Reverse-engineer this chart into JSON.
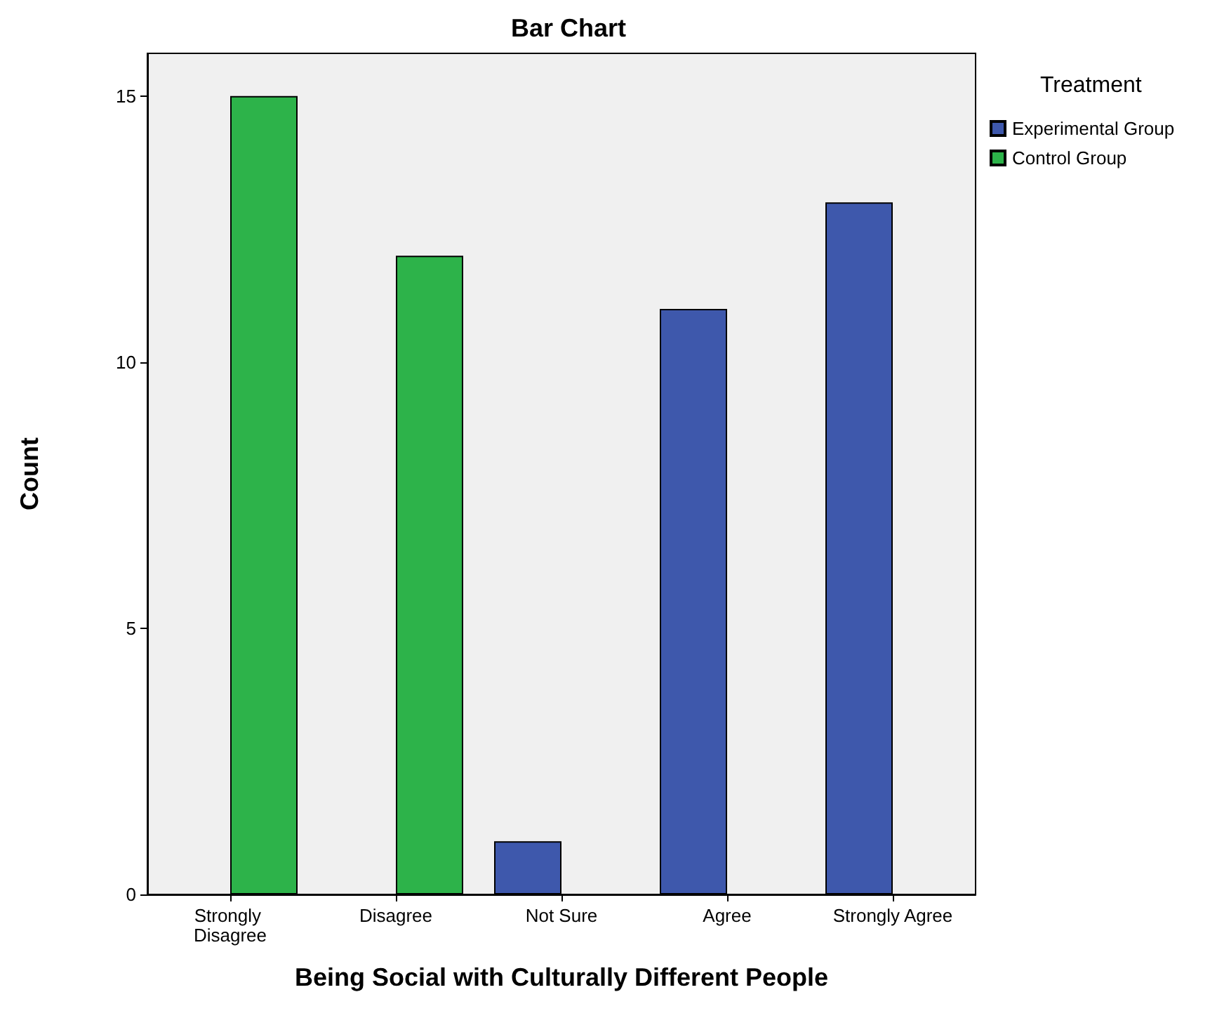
{
  "chart_data": {
    "type": "bar",
    "title": "Bar Chart",
    "xlabel": "Being Social with Culturally Different People",
    "ylabel": "Count",
    "legend_title": "Treatment",
    "categories": [
      "Strongly Disagree",
      "Disagree",
      "Not Sure",
      "Agree",
      "Strongly Agree"
    ],
    "series": [
      {
        "name": "Experimental Group",
        "color": "#3e58ac",
        "values": [
          null,
          null,
          1,
          11,
          13
        ]
      },
      {
        "name": "Control Group",
        "color": "#2db34a",
        "values": [
          15,
          12,
          null,
          null,
          null
        ]
      }
    ],
    "ylim": [
      0,
      15.8
    ],
    "yticks": [
      0,
      5,
      10,
      15
    ],
    "grid": false,
    "legend": "top right"
  }
}
